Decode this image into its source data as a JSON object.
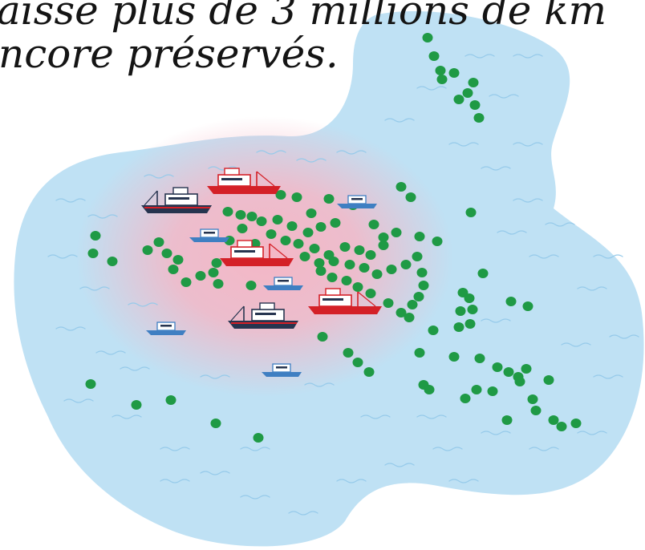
{
  "caption": {
    "line1": "aisse plus de 3 millions de km",
    "line2": "ncore préservés."
  },
  "colors": {
    "water": "#bfe1f4",
    "wave": "#96caea",
    "fished_zone": "#f4b7c6",
    "dot": "#1f9a45",
    "boat_hull_red": "#d42027",
    "boat_hull_navy": "#26344f",
    "boat_hull_blue": "#3f7fc2",
    "boat_cabin": "#ffffff",
    "text": "#141414"
  }
}
